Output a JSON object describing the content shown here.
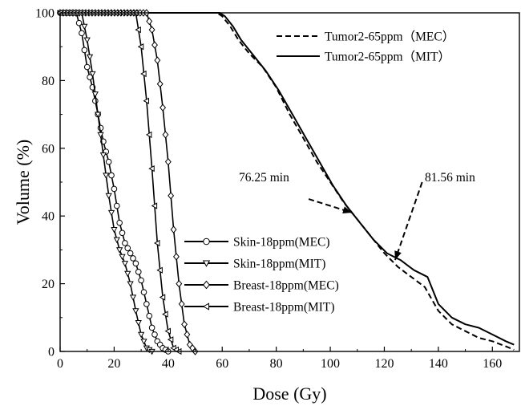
{
  "chart_data": {
    "type": "line",
    "xlabel": "Dose (Gy)",
    "ylabel": "Volume (%)",
    "xlim": [
      0,
      170
    ],
    "ylim": [
      0,
      100
    ],
    "xticks": [
      "0",
      "20",
      "40",
      "60",
      "80",
      "100",
      "120",
      "140",
      "160"
    ],
    "yticks": [
      "0",
      "20",
      "40",
      "60",
      "80",
      "100"
    ],
    "grid": false,
    "series": [
      {
        "name": "Tumor2-65ppm（MEC）",
        "style": "dashed",
        "marker": "none",
        "x": [
          0,
          58,
          60,
          63,
          66,
          70,
          75,
          80,
          85,
          90,
          95,
          100,
          105,
          110,
          115,
          120,
          125,
          130,
          135,
          140,
          145,
          150,
          155,
          160,
          165,
          168
        ],
        "y": [
          100,
          100,
          99,
          96,
          92,
          88,
          84,
          78,
          70,
          63,
          56,
          50,
          44,
          39,
          34,
          29,
          25,
          22,
          19,
          12,
          8,
          6,
          4,
          3,
          1.5,
          0.5
        ]
      },
      {
        "name": "Tumor2-65ppm（MIT）",
        "style": "solid",
        "marker": "none",
        "x": [
          0,
          59,
          61,
          64,
          67,
          71,
          76,
          81,
          86,
          91,
          96,
          101,
          106,
          111,
          116,
          121,
          126,
          131,
          136,
          140,
          145,
          150,
          155,
          160,
          165,
          168
        ],
        "y": [
          100,
          100,
          99,
          96,
          92,
          88,
          83,
          77,
          70,
          63,
          56,
          49,
          43,
          38,
          33,
          29,
          27,
          24,
          22,
          14,
          10,
          8,
          7,
          5,
          3,
          2
        ]
      },
      {
        "name": "Skin-18ppm(MEC)",
        "style": "solid",
        "marker": "circle",
        "x": [
          0,
          6,
          8,
          10,
          12,
          14,
          16,
          18,
          20,
          22,
          24,
          26,
          28,
          30,
          32,
          34,
          36,
          38,
          40
        ],
        "y": [
          100,
          100,
          94,
          84,
          78,
          70,
          62,
          56,
          48,
          38,
          32,
          29,
          26,
          21,
          14,
          7,
          3,
          1,
          0
        ]
      },
      {
        "name": "Skin-18ppm(MIT)",
        "style": "solid",
        "marker": "triangle-down",
        "x": [
          0,
          8,
          10,
          12,
          14,
          16,
          18,
          20,
          22,
          24,
          26,
          28,
          30,
          32,
          34
        ],
        "y": [
          100,
          100,
          92,
          82,
          70,
          58,
          46,
          36,
          30,
          26,
          20,
          12,
          5,
          1,
          0
        ]
      },
      {
        "name": "Breast-18ppm(MEC)",
        "style": "solid",
        "marker": "diamond",
        "x": [
          0,
          32,
          34,
          36,
          38,
          40,
          42,
          44,
          46,
          48,
          50
        ],
        "y": [
          100,
          100,
          95,
          86,
          72,
          56,
          36,
          20,
          8,
          2,
          0
        ]
      },
      {
        "name": "Breast-18ppm(MIT)",
        "style": "solid",
        "marker": "triangle-left",
        "x": [
          0,
          28,
          30,
          32,
          34,
          36,
          38,
          40,
          42,
          44
        ],
        "y": [
          100,
          100,
          90,
          74,
          54,
          32,
          16,
          6,
          1,
          0
        ]
      }
    ],
    "legends": [
      {
        "position": "top-right",
        "entries": [
          "Tumor2-65ppm（MEC）",
          "Tumor2-65ppm（MIT）"
        ]
      },
      {
        "position": "lower-center",
        "entries": [
          "Skin-18ppm(MEC)",
          "Skin-18ppm(MIT)",
          "Breast-18ppm(MEC)",
          "Breast-18ppm(MIT)"
        ]
      }
    ],
    "annotations": [
      {
        "text": "76.25 min",
        "arrow_from": [
          92,
          45
        ],
        "arrow_to": [
          108,
          41
        ]
      },
      {
        "text": "81.56 min",
        "arrow_from": [
          134,
          50
        ],
        "arrow_to": [
          124,
          27
        ]
      }
    ]
  }
}
